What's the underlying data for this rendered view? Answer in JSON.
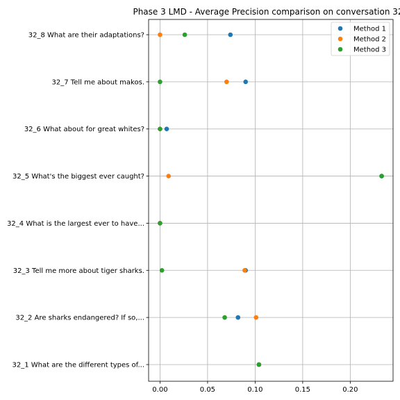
{
  "chart_data": {
    "type": "scatter",
    "title": "Phase 3 LMD - Average Precision comparison on conversation 32",
    "xlabel": "",
    "ylabel": "",
    "categories": [
      "32_1 What are the different types of...",
      "32_2 Are sharks endangered? If so,...",
      "32_3 Tell me more about tiger sharks.",
      "32_4 What is the largest ever to have...",
      "32_5 What's the biggest ever caught?",
      "32_6 What about for great whites?",
      "32_7 Tell me about makos.",
      "32_8 What are their adaptations?"
    ],
    "xlim": [
      -0.012,
      0.245
    ],
    "xticks": [
      0.0,
      0.05,
      0.1,
      0.15,
      0.2
    ],
    "xtick_labels": [
      "0.00",
      "0.05",
      "0.10",
      "0.15",
      "0.20"
    ],
    "grid": true,
    "legend_position": "top-right",
    "series": [
      {
        "name": "Method 1",
        "color": "#1f77b4",
        "values": [
          0.104,
          0.082,
          0.09,
          0.0,
          0.233,
          0.007,
          0.09,
          0.074
        ]
      },
      {
        "name": "Method 2",
        "color": "#ff7f0e",
        "values": [
          0.104,
          0.101,
          0.089,
          0.0,
          0.009,
          0.0,
          0.07,
          0.0
        ]
      },
      {
        "name": "Method 3",
        "color": "#2ca02c",
        "values": [
          0.104,
          0.068,
          0.002,
          0.0,
          0.233,
          0.0,
          0.0,
          0.026
        ]
      }
    ]
  }
}
